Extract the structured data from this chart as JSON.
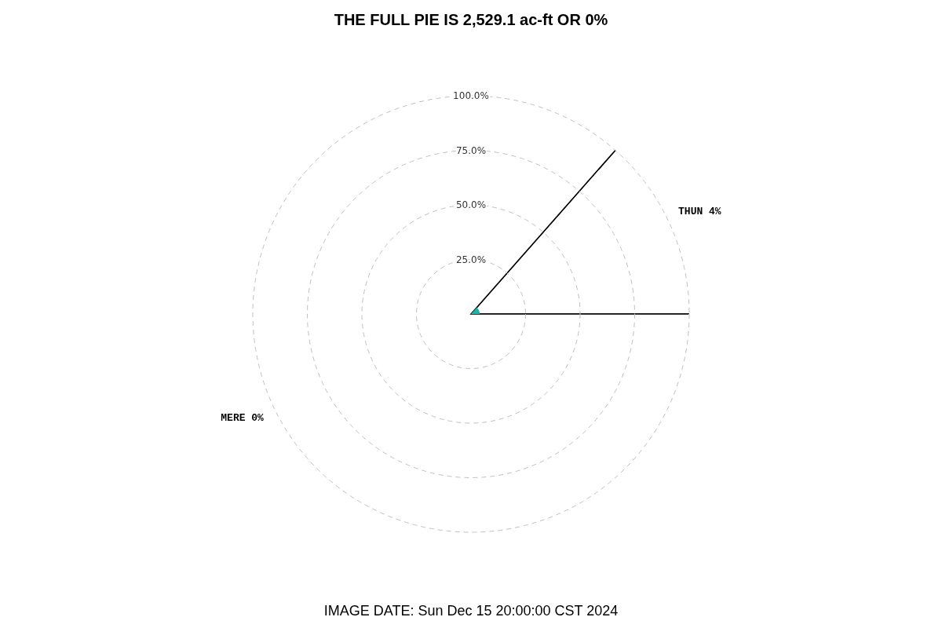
{
  "chart_data": {
    "type": "pie",
    "title": "THE FULL PIE IS 2,529.1 ac-ft OR 0%",
    "categories": [
      "THUN 4%",
      "MERE 0%"
    ],
    "values": [
      13.5,
      86.5
    ],
    "colors": [
      "#ffffff",
      "#ffffff"
    ],
    "grid": true,
    "annotations": [
      "25.0%",
      "50.0%",
      "75.0%",
      "100.0%",
      "IMAGE DATE: Sun Dec 15 20:00:00 CST 2024"
    ]
  }
}
